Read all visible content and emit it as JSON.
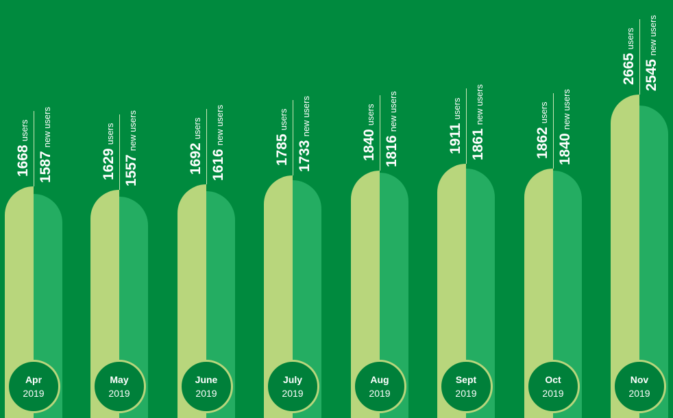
{
  "chart_data": {
    "type": "bar",
    "categories": [
      {
        "month": "Apr",
        "year": "2019"
      },
      {
        "month": "May",
        "year": "2019"
      },
      {
        "month": "June",
        "year": "2019"
      },
      {
        "month": "July",
        "year": "2019"
      },
      {
        "month": "Aug",
        "year": "2019"
      },
      {
        "month": "Sept",
        "year": "2019"
      },
      {
        "month": "Oct",
        "year": "2019"
      },
      {
        "month": "Nov",
        "year": "2019"
      }
    ],
    "series": [
      {
        "name": "users",
        "values": [
          1668,
          1629,
          1692,
          1785,
          1840,
          1911,
          1862,
          2665
        ],
        "color": "#b8d67c"
      },
      {
        "name": "new users",
        "values": [
          1587,
          1557,
          1616,
          1733,
          1816,
          1861,
          1840,
          2545
        ],
        "color": "#24ad62"
      }
    ],
    "background_color": "#008a3e",
    "legend": "none",
    "grid": false
  }
}
